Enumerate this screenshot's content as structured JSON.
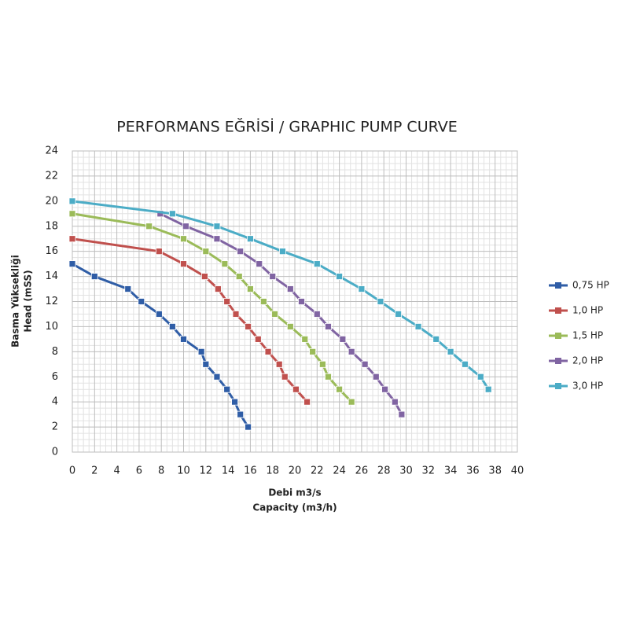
{
  "chart_data": {
    "type": "line",
    "title": "PERFORMANS EĞRİSİ / GRAPHIC PUMP CURVE",
    "xlabel": [
      "Debi m3/s",
      "Capacity (m3/h)"
    ],
    "ylabel": [
      "Basma Yüksekliği",
      "Head (mSS)"
    ],
    "xlim": [
      0,
      40
    ],
    "ylim": [
      0,
      24
    ],
    "xticks": [
      0,
      2,
      4,
      6,
      8,
      10,
      12,
      14,
      16,
      18,
      20,
      22,
      24,
      26,
      28,
      30,
      32,
      34,
      36,
      38,
      40
    ],
    "yticks": [
      0,
      2,
      4,
      6,
      8,
      10,
      12,
      14,
      16,
      18,
      20,
      22,
      24
    ],
    "grid": true,
    "legend": "right",
    "series": [
      {
        "name": "0,75 HP",
        "color": "#2f5da6",
        "x": [
          0,
          2,
          5,
          6.2,
          7.8,
          9,
          10,
          11.6,
          12,
          13,
          13.9,
          14.6,
          15.1,
          15.8
        ],
        "values": [
          15,
          14,
          13,
          12,
          11,
          10,
          9,
          8,
          7,
          6,
          5,
          4,
          3,
          2
        ]
      },
      {
        "name": "1,0 HP",
        "color": "#c0504d",
        "x": [
          0,
          7.8,
          10,
          11.9,
          13.1,
          13.9,
          14.7,
          15.8,
          16.7,
          17.6,
          18.6,
          19.1,
          20.1,
          21.1
        ],
        "values": [
          17,
          16,
          15,
          14,
          13,
          12,
          11,
          10,
          9,
          8,
          7,
          6,
          5,
          4
        ]
      },
      {
        "name": "1,5 HP",
        "color": "#9bbb59",
        "x": [
          0,
          6.9,
          10,
          12,
          13.7,
          15,
          16,
          17.2,
          18.2,
          19.6,
          20.9,
          21.6,
          22.5,
          23,
          24,
          25.1
        ],
        "values": [
          19,
          18,
          17,
          16,
          15,
          14,
          13,
          12,
          11,
          10,
          9,
          8,
          7,
          6,
          5,
          4
        ]
      },
      {
        "name": "2,0 HP",
        "color": "#8064a2",
        "x": [
          7.9,
          10.2,
          13,
          15.1,
          16.8,
          18,
          19.6,
          20.6,
          22,
          23,
          24.3,
          25.1,
          26.3,
          27.3,
          28.1,
          29,
          29.6
        ],
        "values": [
          19,
          18,
          17,
          16,
          15,
          14,
          13,
          12,
          11,
          10,
          9,
          8,
          7,
          6,
          5,
          4,
          3
        ]
      },
      {
        "name": "3,0 HP",
        "color": "#4bacc6",
        "x": [
          0,
          9,
          13,
          16,
          18.9,
          22,
          24,
          26,
          27.7,
          29.3,
          31.1,
          32.7,
          34,
          35.3,
          36.7,
          37.4
        ],
        "values": [
          20,
          19,
          18,
          17,
          16,
          15,
          14,
          13,
          12,
          11,
          10,
          9,
          8,
          7,
          6,
          5
        ]
      }
    ]
  }
}
